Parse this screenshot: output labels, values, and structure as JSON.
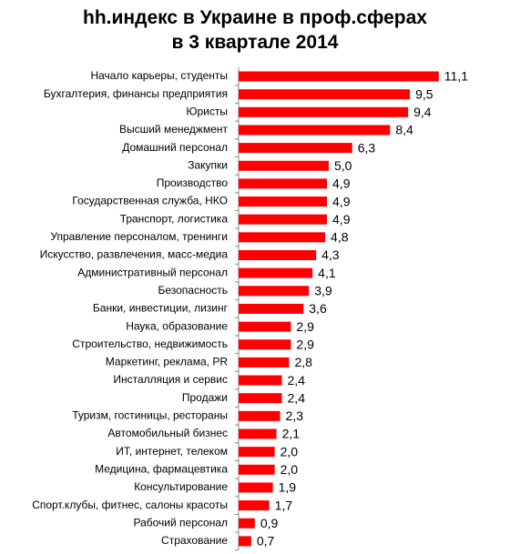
{
  "chart_data": {
    "type": "bar",
    "orientation": "horizontal",
    "title": "hh.индекс в Украине в проф.сферах в 3 квартале 2014",
    "categories": [
      "Начало карьеры, студенты",
      "Бухгалтерия, финансы предприятия",
      "Юристы",
      "Высший менеджмент",
      "Домашний персонал",
      "Закупки",
      "Производство",
      "Государственная служба, НКО",
      "Транспорт, логистика",
      "Управление персоналом, тренинги",
      "Искусство, развлечения, масс-медиа",
      "Административный персонал",
      "Безопасность",
      "Банки, инвестиции,  лизинг",
      "Наука, образование",
      "Строительство, недвижимость",
      "Маркетинг, реклама, PR",
      "Инсталляция и сервис",
      "Продажи",
      "Туризм, гостиницы, рестораны",
      "Автомобильный бизнес",
      "ИТ, интернет,  телеком",
      "Медицина, фармацевтика",
      "Консультирование",
      "Спорт.клубы, фитнес, салоны красоты",
      "Рабочий персонал",
      "Страхование"
    ],
    "values": [
      11.1,
      9.5,
      9.4,
      8.4,
      6.3,
      5.0,
      4.9,
      4.9,
      4.9,
      4.8,
      4.3,
      4.1,
      3.9,
      3.6,
      2.9,
      2.9,
      2.8,
      2.4,
      2.4,
      2.3,
      2.1,
      2.0,
      2.0,
      1.9,
      1.7,
      0.9,
      0.7
    ],
    "value_labels": [
      "11,1",
      "9,5",
      "9,4",
      "8,4",
      "6,3",
      "5,0",
      "4,9",
      "4,9",
      "4,9",
      "4,8",
      "4,3",
      "4,1",
      "3,9",
      "3,6",
      "2,9",
      "2,9",
      "2,8",
      "2,4",
      "2,4",
      "2,3",
      "2,1",
      "2,0",
      "2,0",
      "1,9",
      "1,7",
      "0,9",
      "0,7"
    ],
    "color": "#ff0000"
  }
}
